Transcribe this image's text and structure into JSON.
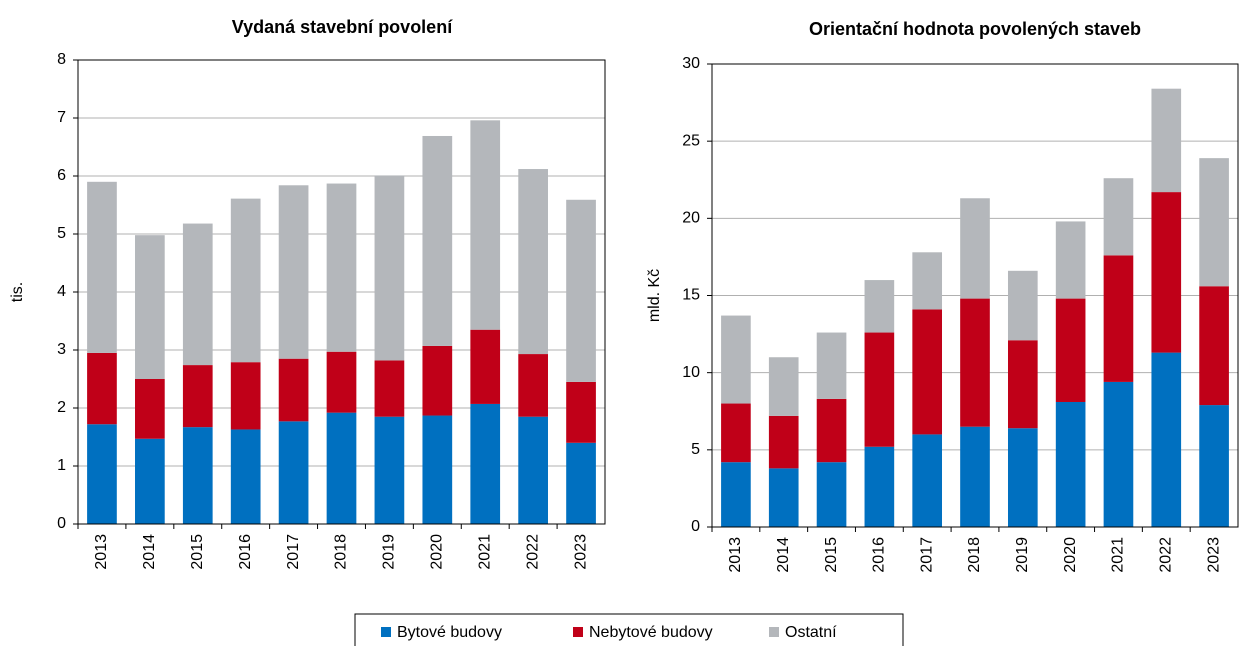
{
  "chart_data": [
    {
      "type": "bar",
      "stacked": true,
      "title": "Vydaná stavební povolení",
      "y_label": "tis.",
      "categories": [
        "2013",
        "2014",
        "2015",
        "2016",
        "2017",
        "2018",
        "2019",
        "2020",
        "2021",
        "2022",
        "2023"
      ],
      "series": [
        {
          "name": "Bytové budovy",
          "color": "#0070c0",
          "values": [
            1.72,
            1.47,
            1.67,
            1.63,
            1.77,
            1.92,
            1.85,
            1.87,
            2.07,
            1.85,
            1.4
          ]
        },
        {
          "name": "Nebytové budovy",
          "color": "#c00018",
          "values": [
            1.23,
            1.03,
            1.07,
            1.16,
            1.08,
            1.05,
            0.97,
            1.2,
            1.28,
            1.08,
            1.05
          ]
        },
        {
          "name": "Ostatní",
          "color": "#b4b7bb",
          "values": [
            2.95,
            2.48,
            2.44,
            2.82,
            2.99,
            2.9,
            3.19,
            3.62,
            3.61,
            3.19,
            3.14
          ]
        }
      ],
      "ylim": [
        0,
        8
      ],
      "yticks": [
        0,
        1,
        2,
        3,
        4,
        5,
        6,
        7,
        8
      ],
      "grid": true
    },
    {
      "type": "bar",
      "stacked": true,
      "title": "Orientační hodnota povolených staveb",
      "y_label": "mld. Kč",
      "categories": [
        "2013",
        "2014",
        "2015",
        "2016",
        "2017",
        "2018",
        "2019",
        "2020",
        "2021",
        "2022",
        "2023"
      ],
      "series": [
        {
          "color": "#0070c0",
          "values": [
            4.2,
            3.8,
            4.2,
            5.2,
            6.0,
            6.5,
            6.4,
            8.1,
            9.4,
            11.3,
            7.9
          ]
        },
        {
          "color": "#c00018",
          "values": [
            3.8,
            3.4,
            4.1,
            7.4,
            8.1,
            8.3,
            5.7,
            6.7,
            8.2,
            10.4,
            7.7
          ]
        },
        {
          "color": "#b4b7bb",
          "values": [
            5.7,
            3.8,
            4.3,
            3.4,
            3.7,
            6.5,
            4.5,
            5.0,
            5.0,
            6.7,
            8.3
          ]
        }
      ],
      "ylim": [
        0,
        30
      ],
      "yticks": [
        0,
        5,
        10,
        15,
        20,
        25,
        30
      ],
      "grid": true
    }
  ]
}
